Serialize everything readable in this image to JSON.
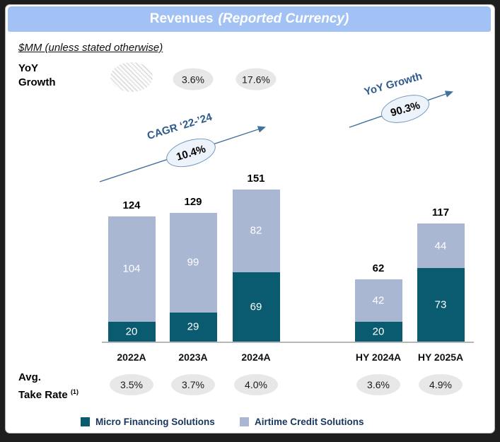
{
  "title": {
    "main": "Revenues",
    "note": "(Reported Currency)"
  },
  "subtitle": "$MM (unless stated otherwise)",
  "yoy_row": {
    "label_line1": "YoY",
    "label_line2": "Growth",
    "values": [
      "hatched",
      "3.6%",
      "17.6%"
    ]
  },
  "annotations": {
    "cagr": {
      "label": "CAGR ‘22-’24",
      "value": "10.4%"
    },
    "hy_yoy": {
      "label": "YoY Growth",
      "value": "90.3%"
    }
  },
  "chart_data": {
    "type": "stacked-bar",
    "title": "Revenues (Reported Currency)",
    "unit": "$MM",
    "categories": [
      "2022A",
      "2023A",
      "2024A",
      "HY 2024A",
      "HY 2025A"
    ],
    "series": [
      {
        "name": "Micro Financing Solutions",
        "color": "#0a5b70",
        "values": [
          20,
          29,
          69,
          20,
          73
        ]
      },
      {
        "name": "Airtime Credit Solutions",
        "color": "#a9b7d3",
        "values": [
          104,
          99,
          82,
          42,
          44
        ]
      }
    ],
    "totals": [
      124,
      129,
      151,
      62,
      117
    ],
    "yoy_growth_pct": [
      null,
      3.6,
      17.6,
      null,
      90.3
    ],
    "cagr_22_24_pct": 10.4,
    "avg_take_rate_pct": [
      3.5,
      3.7,
      4.0,
      3.6,
      4.9
    ],
    "legend_position": "bottom",
    "grid": false
  },
  "take_rate": {
    "label_line1": "Avg.",
    "label_line2": "Take Rate ",
    "superscript": "(1)",
    "values": [
      "3.5%",
      "3.7%",
      "4.0%",
      "3.6%",
      "4.9%"
    ]
  },
  "colors": {
    "title_bar": "#a2c1f4",
    "micro": "#0a5b70",
    "airtime": "#a9b7d3",
    "oval_gray": "#e7e7e7",
    "annotation_text": "#2e5b8c",
    "arrow": "#41719c"
  }
}
